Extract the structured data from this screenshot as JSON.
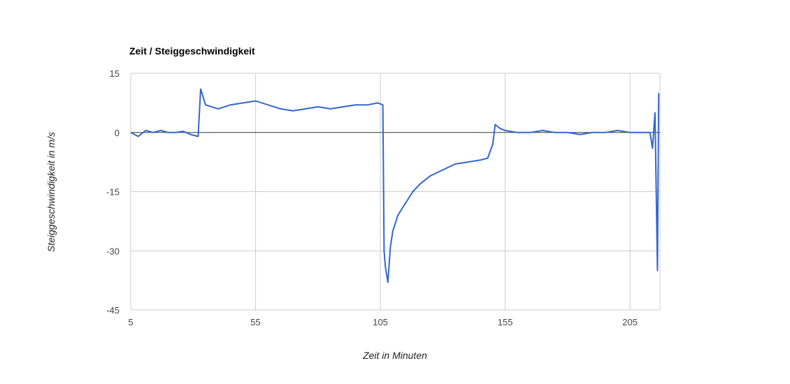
{
  "chart_data": {
    "type": "line",
    "title": "Zeit / Steiggeschwindigkeit",
    "xlabel": "Zeit in Minuten",
    "ylabel": "Steiggeschwindigkeit in m/s",
    "xlim": [
      5,
      217
    ],
    "ylim": [
      -45,
      15
    ],
    "x_ticks": [
      "5",
      "55",
      "105",
      "155",
      "205"
    ],
    "y_ticks": [
      "15",
      "0",
      "-15",
      "-30",
      "-45"
    ],
    "grid": true,
    "legend": "none",
    "series": [
      {
        "color": "#3366cc",
        "x": [
          5,
          8,
          11,
          14,
          17,
          20,
          23,
          26,
          29,
          32,
          33,
          35,
          40,
          45,
          50,
          55,
          60,
          65,
          70,
          75,
          80,
          85,
          90,
          95,
          100,
          104,
          106,
          106.5,
          107,
          108,
          109,
          110,
          112,
          115,
          118,
          121,
          125,
          130,
          135,
          140,
          145,
          148,
          150,
          151,
          153,
          155,
          160,
          165,
          170,
          175,
          180,
          185,
          190,
          195,
          200,
          205,
          210,
          213,
          214,
          215,
          216,
          216.5
        ],
        "y": [
          0,
          -1,
          0.5,
          0,
          0.5,
          0,
          0,
          0.3,
          -0.5,
          -1,
          11,
          7,
          6,
          7,
          7.5,
          8,
          7,
          6,
          5.5,
          6,
          6.5,
          6,
          6.5,
          7,
          7,
          7.5,
          7,
          -30,
          -34,
          -38,
          -29,
          -25,
          -21,
          -18,
          -15,
          -13,
          -11,
          -9.5,
          -8,
          -7.5,
          -7,
          -6.5,
          -3,
          2,
          1,
          0.5,
          0,
          0,
          0.5,
          0,
          0,
          -0.5,
          0,
          0,
          0.5,
          0,
          0,
          0,
          -4,
          5,
          -35,
          10
        ]
      }
    ]
  }
}
